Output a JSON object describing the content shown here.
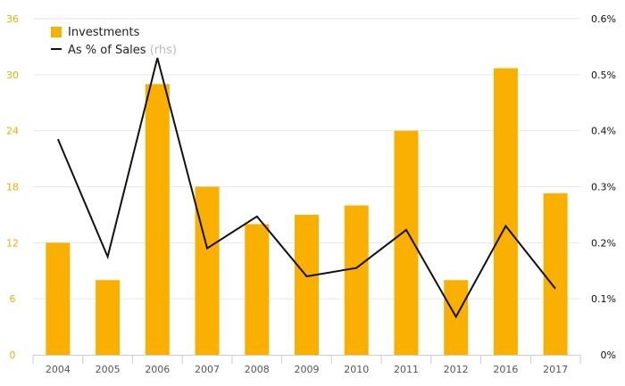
{
  "chart_data": {
    "type": "bar",
    "categories": [
      "2004",
      "2005",
      "2006",
      "2007",
      "2008",
      "2009",
      "2010",
      "2011",
      "2012",
      "2016",
      "2017"
    ],
    "series": [
      {
        "name": "Investments",
        "type": "bar",
        "axis": "left",
        "color": "#f9b000",
        "values": [
          12,
          8,
          29,
          18,
          14,
          15,
          16,
          24,
          8,
          30.7,
          17.3
        ]
      },
      {
        "name": "As % of Sales",
        "name_suffix": "(rhs)",
        "type": "line",
        "axis": "right",
        "color": "#111111",
        "values": [
          0.385,
          0.175,
          0.53,
          0.19,
          0.247,
          0.14,
          0.155,
          0.223,
          0.068,
          0.23,
          0.118
        ]
      }
    ],
    "y_left": {
      "ylim": [
        0,
        36
      ],
      "ticks": [
        "0",
        "6",
        "12",
        "18",
        "24",
        "30",
        "36"
      ]
    },
    "y_right": {
      "ylim": [
        0,
        0.6
      ],
      "ticks": [
        "0%",
        "0.1%",
        "0.2%",
        "0.3%",
        "0.4%",
        "0.5%",
        "0.6%"
      ]
    },
    "grid": true,
    "legend": "top-left",
    "title": "",
    "xlabel": "",
    "ylabel": ""
  }
}
